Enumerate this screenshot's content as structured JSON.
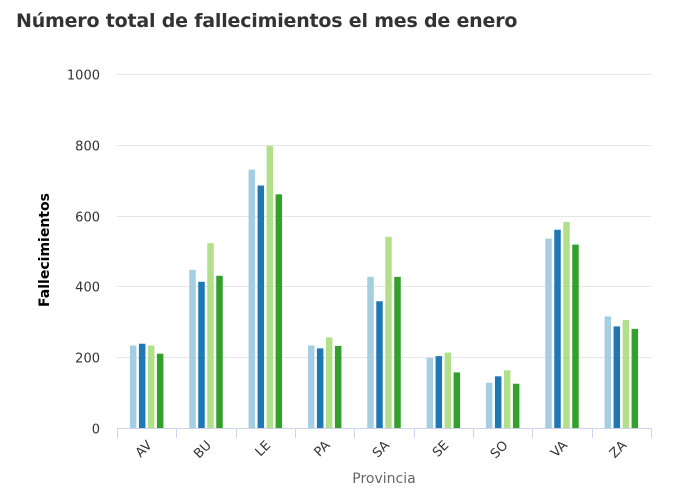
{
  "chart_data": {
    "type": "bar",
    "title": "Número total de fallecimientos el mes de enero",
    "xlabel": "Provincia",
    "ylabel": "Fallecimientos",
    "ylim": [
      0,
      1000
    ],
    "yticks": [
      0,
      200,
      400,
      600,
      800,
      1000
    ],
    "grid": true,
    "legend": "none",
    "categories": [
      "AV",
      "BU",
      "LE",
      "PA",
      "SA",
      "SE",
      "SO",
      "VA",
      "ZA"
    ],
    "colors": [
      "#a6cee3",
      "#1f78b4",
      "#b2df8a",
      "#33a02c"
    ],
    "series": [
      {
        "values": [
          233,
          447,
          730,
          233,
          427,
          198,
          128,
          535,
          315
        ]
      },
      {
        "values": [
          238,
          413,
          685,
          225,
          358,
          203,
          146,
          560,
          287
        ]
      },
      {
        "values": [
          233,
          522,
          797,
          256,
          540,
          213,
          163,
          582,
          305
        ]
      },
      {
        "values": [
          210,
          430,
          660,
          232,
          427,
          157,
          125,
          518,
          280
        ]
      }
    ]
  }
}
